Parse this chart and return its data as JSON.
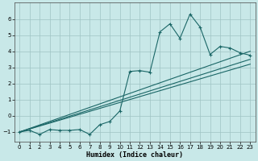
{
  "xlabel": "Humidex (Indice chaleur)",
  "xlim": [
    -0.5,
    23.5
  ],
  "ylim": [
    -1.6,
    7.0
  ],
  "yticks": [
    -1,
    0,
    1,
    2,
    3,
    4,
    5,
    6
  ],
  "xticks": [
    0,
    1,
    2,
    3,
    4,
    5,
    6,
    7,
    8,
    9,
    10,
    11,
    12,
    13,
    14,
    15,
    16,
    17,
    18,
    19,
    20,
    21,
    22,
    23
  ],
  "bg_color": "#c8e8e8",
  "grid_color": "#9fc4c4",
  "line_color": "#1a6666",
  "series1_x": [
    0,
    1,
    2,
    3,
    4,
    5,
    6,
    7,
    8,
    9,
    10,
    11,
    12,
    13,
    14,
    15,
    16,
    17,
    18,
    19,
    20,
    21,
    22,
    23
  ],
  "series1_y": [
    -1.0,
    -0.9,
    -1.15,
    -0.85,
    -0.9,
    -0.9,
    -0.85,
    -1.15,
    -0.55,
    -0.35,
    0.3,
    2.75,
    2.8,
    2.7,
    5.2,
    5.7,
    4.8,
    6.3,
    5.5,
    3.8,
    4.3,
    4.2,
    3.9,
    3.75
  ],
  "line1_x": [
    0,
    23
  ],
  "line1_y": [
    -1.0,
    4.0
  ],
  "line2_x": [
    0,
    23
  ],
  "line2_y": [
    -1.0,
    3.5
  ],
  "line3_x": [
    0,
    23
  ],
  "line3_y": [
    -1.0,
    3.2
  ]
}
